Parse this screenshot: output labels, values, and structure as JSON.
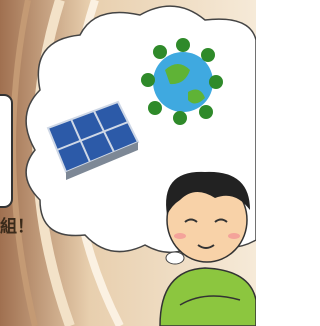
{
  "caption": {
    "text": "組！"
  }
}
